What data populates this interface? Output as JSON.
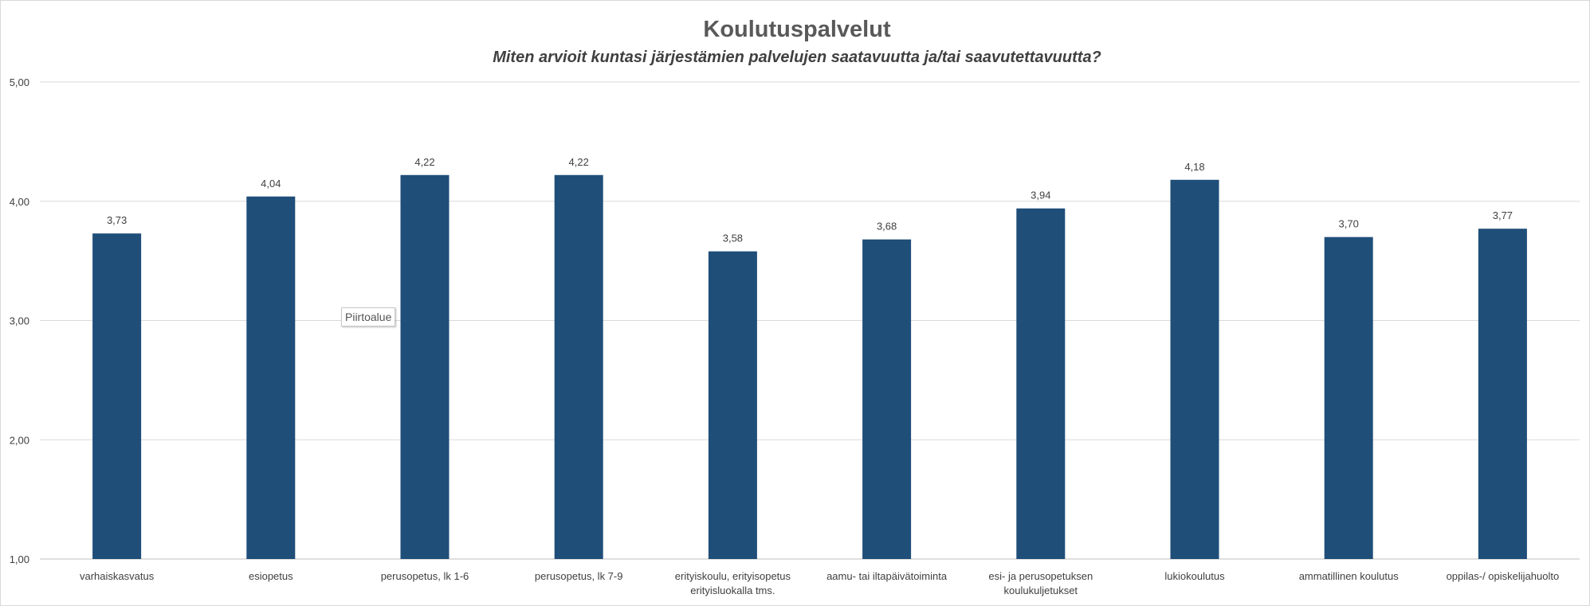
{
  "chart_data": {
    "type": "bar",
    "title": "Koulutuspalvelut",
    "subtitle": "Miten arvioit kuntasi järjestämien palvelujen saatavuutta ja/tai saavutettavuutta?",
    "categories": [
      [
        "varhaiskasvatus"
      ],
      [
        "esiopetus"
      ],
      [
        "perusopetus, lk 1-6"
      ],
      [
        "perusopetus, lk 7-9"
      ],
      [
        "erityiskoulu, erityisopetus",
        "erityisluokalla tms."
      ],
      [
        "aamu- tai iltapäivätoiminta"
      ],
      [
        "esi- ja perusopetuksen",
        "koulukuljetukset"
      ],
      [
        "lukiokoulutus"
      ],
      [
        "ammatillinen koulutus"
      ],
      [
        "oppilas-/ opiskelijahuolto"
      ]
    ],
    "values": [
      3.73,
      4.04,
      4.22,
      4.22,
      3.58,
      3.68,
      3.94,
      4.18,
      3.7,
      3.77
    ],
    "value_labels": [
      "3,73",
      "4,04",
      "4,22",
      "4,22",
      "3,58",
      "3,68",
      "3,94",
      "4,18",
      "3,70",
      "3,77"
    ],
    "ylim": [
      1,
      5
    ],
    "yticks": [
      1,
      2,
      3,
      4,
      5
    ],
    "ytick_labels": [
      "1,00",
      "2,00",
      "3,00",
      "4,00",
      "5,00"
    ],
    "grid": true,
    "bar_color": "#1f4e79",
    "xlabel": "",
    "ylabel": ""
  },
  "tooltip": {
    "text": "Piirtoalue"
  }
}
